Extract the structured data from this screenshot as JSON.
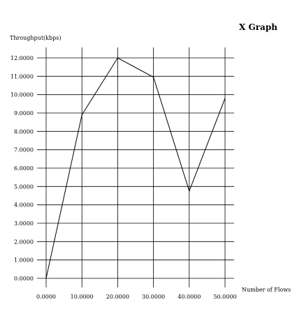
{
  "chart_data": {
    "type": "line",
    "title": "X Graph",
    "xlabel": "Number of Flows",
    "ylabel": "Throughput(kbps)",
    "x": [
      0,
      10,
      20,
      30,
      40,
      50
    ],
    "series": [
      {
        "values": [
          0.0,
          8.9,
          12.0,
          10.95,
          4.75,
          9.8
        ]
      }
    ],
    "xlim": [
      0,
      50
    ],
    "ylim": [
      0,
      12
    ],
    "xticks": [
      0,
      10,
      20,
      30,
      40,
      50
    ],
    "xtick_labels": [
      "0.0000",
      "10.0000",
      "20.0000",
      "30.0000",
      "40.0000",
      "50.0000"
    ],
    "yticks": [
      0,
      1,
      2,
      3,
      4,
      5,
      6,
      7,
      8,
      9,
      10,
      11,
      12
    ],
    "ytick_labels": [
      "0.0000",
      "1.0000",
      "2.0000",
      "3.0000",
      "4.0000",
      "5.0000",
      "6.0000",
      "7.0000",
      "8.0000",
      "9.0000",
      "10.0000",
      "11.0000",
      "12.0000"
    ],
    "grid": true,
    "legend": "none",
    "line_color": "#000000"
  }
}
